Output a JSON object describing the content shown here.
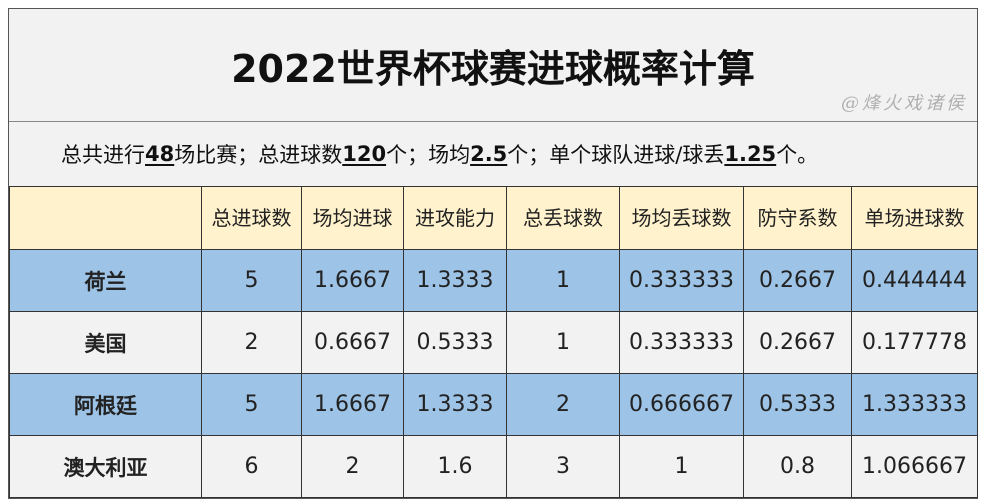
{
  "title": "2022世界杯球赛进球概率计算",
  "summary": {
    "p1": "总共进行",
    "v1": "48",
    "p2": "场比赛；总进球数",
    "v2": "120",
    "p3": "个；场均",
    "v3": "2.5",
    "p4": "个；单个球队进球/球丢",
    "v4": "1.25",
    "p5": "个。"
  },
  "headers": [
    "",
    "总进球数",
    "场均进球",
    "进攻能力",
    "总丢球数",
    "场均丢球数",
    "防守系数",
    "单场进球数"
  ],
  "rows": [
    [
      "荷兰",
      "5",
      "1.6667",
      "1.3333",
      "1",
      "0.333333",
      "0.2667",
      "0.444444"
    ],
    [
      "美国",
      "2",
      "0.6667",
      "0.5333",
      "1",
      "0.333333",
      "0.2667",
      "0.177778"
    ],
    [
      "阿根廷",
      "5",
      "1.6667",
      "1.3333",
      "2",
      "0.666667",
      "0.5333",
      "1.333333"
    ],
    [
      "澳大利亚",
      "6",
      "2",
      "1.6",
      "3",
      "1",
      "0.8",
      "1.066667"
    ]
  ],
  "watermark": "@烽火戏诸侯",
  "colors": {
    "header": "#fff2cc",
    "blue_row": "#9dc3e6",
    "gray_row": "#f2f2f2"
  }
}
